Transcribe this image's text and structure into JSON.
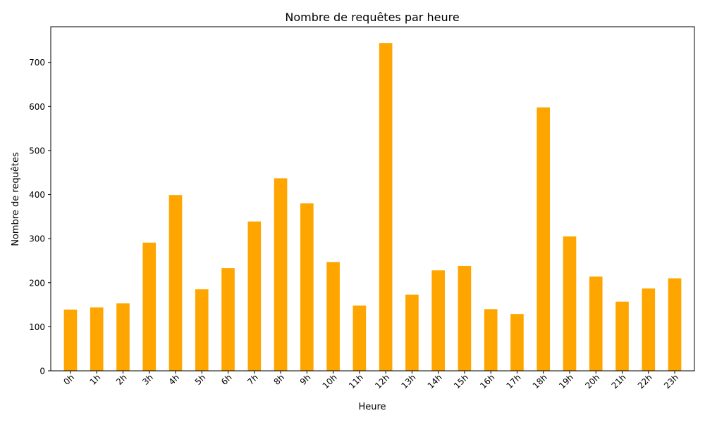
{
  "chart_data": {
    "type": "bar",
    "title": "Nombre de requêtes par heure",
    "xlabel": "Heure",
    "ylabel": "Nombre de requêtes",
    "categories": [
      "0h",
      "1h",
      "2h",
      "3h",
      "4h",
      "5h",
      "6h",
      "7h",
      "8h",
      "9h",
      "10h",
      "11h",
      "12h",
      "13h",
      "14h",
      "15h",
      "16h",
      "17h",
      "18h",
      "19h",
      "20h",
      "21h",
      "22h",
      "23h"
    ],
    "values": [
      139,
      144,
      153,
      291,
      399,
      185,
      233,
      339,
      437,
      380,
      247,
      148,
      744,
      173,
      228,
      238,
      140,
      129,
      598,
      305,
      214,
      157,
      187,
      210
    ],
    "ylim": [
      0,
      781
    ],
    "yticks": [
      0,
      100,
      200,
      300,
      400,
      500,
      600,
      700
    ],
    "bar_color": "#FFA500",
    "grid": false,
    "legend": "none"
  }
}
